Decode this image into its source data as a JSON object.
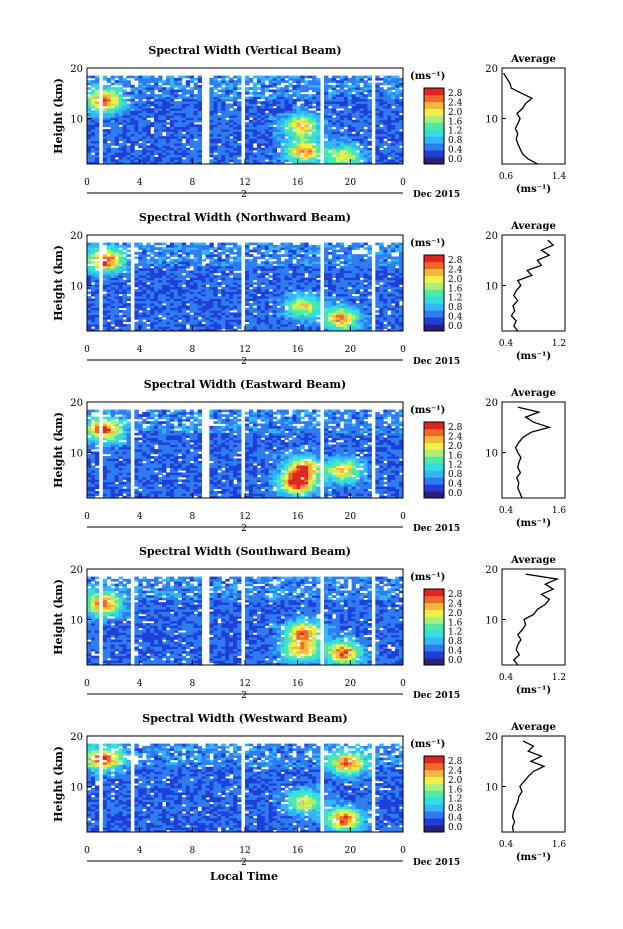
{
  "colorbar": {
    "unit": "(ms⁻¹)",
    "ticks": [
      "0.0",
      "0.4",
      "0.8",
      "1.2",
      "1.6",
      "2.0",
      "2.4",
      "2.8"
    ],
    "min": 0.0,
    "max": 3.0,
    "colors": [
      "#2a1f7a",
      "#1f3fd9",
      "#2f7cf0",
      "#33b5ff",
      "#33dede",
      "#4ee8a8",
      "#a9f07a",
      "#f2f047",
      "#f5b83a",
      "#ef6a2a",
      "#e0241f"
    ]
  },
  "bottom": {
    "x_ticks": [
      "0",
      "4",
      "8",
      "12",
      "16",
      "20",
      "0"
    ],
    "day_label": "2",
    "month_label": "Dec 2015",
    "xlabel": "Local Time"
  },
  "chart_data": [
    {
      "type": "heatmap",
      "title": "Spectral Width (Vertical Beam)",
      "ylabel": "Height (km)",
      "y_ticks": [
        "20",
        "10"
      ],
      "xlim": [
        0,
        24
      ],
      "ylim": [
        1,
        20
      ],
      "z_unit": "ms⁻¹",
      "gaps_hours": [
        [
          1.0,
          1.15
        ],
        [
          8.8,
          9.2
        ],
        [
          11.8,
          12.1
        ],
        [
          17.7,
          18.0
        ],
        [
          21.6,
          21.9
        ]
      ],
      "data_top_km": 18.5,
      "hotspots": [
        {
          "t": 1.3,
          "h": 13.5,
          "value": 2.6
        },
        {
          "t": 16.3,
          "h": 8.5,
          "value": 2.2
        },
        {
          "t": 16.5,
          "h": 3.5,
          "value": 2.4
        },
        {
          "t": 19.5,
          "h": 2.5,
          "value": 2.0
        }
      ],
      "profile": {
        "title": "Average",
        "xlabel": "(ms⁻¹)",
        "xlim": [
          0.6,
          1.4
        ],
        "x_ticks": [
          "0.6",
          "1.4"
        ],
        "y_ticks": [
          "20",
          "10"
        ],
        "heights_km": [
          1,
          2,
          3,
          4,
          5,
          6,
          7,
          8,
          9,
          10,
          11,
          12,
          13,
          14,
          15,
          16,
          17,
          18,
          19
        ],
        "values": [
          1.05,
          0.93,
          0.86,
          0.83,
          0.8,
          0.78,
          0.8,
          0.77,
          0.8,
          0.83,
          0.79,
          0.86,
          0.9,
          0.98,
          0.85,
          0.72,
          0.7,
          0.66,
          0.62
        ]
      }
    },
    {
      "type": "heatmap",
      "title": "Spectral Width (Northward Beam)",
      "ylabel": "Height (km)",
      "y_ticks": [
        "20",
        "10"
      ],
      "xlim": [
        0,
        24
      ],
      "ylim": [
        1,
        20
      ],
      "z_unit": "ms⁻¹",
      "gaps_hours": [
        [
          1.0,
          1.15
        ],
        [
          3.4,
          3.6
        ],
        [
          4.4,
          4.6
        ],
        [
          11.8,
          12.1
        ],
        [
          17.7,
          18.0
        ],
        [
          21.6,
          21.9
        ]
      ],
      "data_top_km": 18.5,
      "hotspots": [
        {
          "t": 1.4,
          "h": 15.0,
          "value": 2.6
        },
        {
          "t": 16.4,
          "h": 6.0,
          "value": 2.0
        },
        {
          "t": 19.3,
          "h": 3.5,
          "value": 2.4
        }
      ],
      "profile": {
        "title": "Average",
        "xlabel": "(ms⁻¹)",
        "xlim": [
          0.4,
          1.2
        ],
        "x_ticks": [
          "0.4",
          "1.2"
        ],
        "y_ticks": [
          "20",
          "10"
        ],
        "heights_km": [
          1,
          2,
          3,
          4,
          5,
          6,
          7,
          8,
          9,
          10,
          11,
          12,
          13,
          14,
          15,
          16,
          17,
          18,
          19
        ],
        "values": [
          0.6,
          0.55,
          0.58,
          0.52,
          0.56,
          0.54,
          0.6,
          0.55,
          0.58,
          0.64,
          0.6,
          0.78,
          0.72,
          0.9,
          0.85,
          1.0,
          0.9,
          1.05,
          0.98
        ]
      }
    },
    {
      "type": "heatmap",
      "title": "Spectral Width (Eastward Beam)",
      "ylabel": "Height (km)",
      "y_ticks": [
        "20",
        "10"
      ],
      "xlim": [
        0,
        24
      ],
      "ylim": [
        1,
        20
      ],
      "z_unit": "ms⁻¹",
      "gaps_hours": [
        [
          1.0,
          1.15
        ],
        [
          3.4,
          3.6
        ],
        [
          4.4,
          4.6
        ],
        [
          8.8,
          9.2
        ],
        [
          11.8,
          12.1
        ],
        [
          17.7,
          18.0
        ],
        [
          21.6,
          21.9
        ]
      ],
      "data_top_km": 18.5,
      "hotspots": [
        {
          "t": 1.3,
          "h": 14.5,
          "value": 2.6
        },
        {
          "t": 16.0,
          "h": 4.0,
          "value": 2.8
        },
        {
          "t": 16.4,
          "h": 7.0,
          "value": 2.4
        },
        {
          "t": 19.5,
          "h": 6.5,
          "value": 2.2
        }
      ],
      "profile": {
        "title": "Average",
        "xlabel": "(ms⁻¹)",
        "xlim": [
          0.4,
          1.6
        ],
        "x_ticks": [
          "0.4",
          "1.6"
        ],
        "y_ticks": [
          "20",
          "10"
        ],
        "heights_km": [
          1,
          2,
          3,
          4,
          5,
          6,
          7,
          8,
          9,
          10,
          11,
          12,
          13,
          14,
          15,
          16,
          17,
          18,
          19
        ],
        "values": [
          0.78,
          0.74,
          0.7,
          0.72,
          0.68,
          0.75,
          0.7,
          0.72,
          0.76,
          0.7,
          0.66,
          0.72,
          0.8,
          0.95,
          1.3,
          1.0,
          0.85,
          1.1,
          0.7
        ]
      }
    },
    {
      "type": "heatmap",
      "title": "Spectral Width (Southward Beam)",
      "ylabel": "Height (km)",
      "y_ticks": [
        "20",
        "10"
      ],
      "xlim": [
        0,
        24
      ],
      "ylim": [
        1,
        20
      ],
      "z_unit": "ms⁻¹",
      "gaps_hours": [
        [
          1.0,
          1.15
        ],
        [
          3.4,
          3.6
        ],
        [
          4.4,
          4.6
        ],
        [
          8.8,
          9.2
        ],
        [
          11.8,
          12.1
        ],
        [
          17.7,
          18.0
        ],
        [
          21.6,
          21.9
        ]
      ],
      "data_top_km": 18.5,
      "hotspots": [
        {
          "t": 1.2,
          "h": 13.0,
          "value": 2.6
        },
        {
          "t": 16.5,
          "h": 7.5,
          "value": 2.4
        },
        {
          "t": 19.5,
          "h": 3.5,
          "value": 2.6
        },
        {
          "t": 16.2,
          "h": 4.0,
          "value": 2.2
        }
      ],
      "profile": {
        "title": "Average",
        "xlabel": "(ms⁻¹)",
        "xlim": [
          0.4,
          1.2
        ],
        "x_ticks": [
          "0.4",
          "1.2"
        ],
        "y_ticks": [
          "20",
          "10"
        ],
        "heights_km": [
          1,
          2,
          3,
          4,
          5,
          6,
          7,
          8,
          9,
          10,
          11,
          12,
          13,
          14,
          15,
          16,
          17,
          18,
          19
        ],
        "values": [
          0.6,
          0.55,
          0.62,
          0.58,
          0.6,
          0.64,
          0.6,
          0.66,
          0.7,
          0.68,
          0.8,
          0.85,
          0.95,
          1.0,
          0.9,
          1.05,
          0.95,
          1.1,
          0.7
        ]
      }
    },
    {
      "type": "heatmap",
      "title": "Spectral Width (Westward Beam)",
      "ylabel": "Height (km)",
      "y_ticks": [
        "20",
        "10"
      ],
      "xlim": [
        0,
        24
      ],
      "ylim": [
        1,
        20
      ],
      "z_unit": "ms⁻¹",
      "gaps_hours": [
        [
          1.0,
          1.15
        ],
        [
          3.4,
          3.6
        ],
        [
          4.4,
          4.6
        ],
        [
          11.8,
          12.1
        ],
        [
          17.7,
          18.0
        ],
        [
          21.6,
          21.9
        ]
      ],
      "data_top_km": 18.5,
      "hotspots": [
        {
          "t": 1.3,
          "h": 15.5,
          "value": 2.6
        },
        {
          "t": 19.8,
          "h": 14.5,
          "value": 2.4
        },
        {
          "t": 19.5,
          "h": 3.5,
          "value": 2.6
        },
        {
          "t": 16.5,
          "h": 7.0,
          "value": 2.0
        }
      ],
      "profile": {
        "title": "Average",
        "xlabel": "(ms⁻¹)",
        "xlim": [
          0.4,
          1.6
        ],
        "x_ticks": [
          "0.4",
          "1.6"
        ],
        "y_ticks": [
          "20",
          "10"
        ],
        "heights_km": [
          1,
          2,
          3,
          4,
          5,
          6,
          7,
          8,
          9,
          10,
          11,
          12,
          13,
          14,
          15,
          16,
          17,
          18,
          19
        ],
        "values": [
          0.62,
          0.6,
          0.64,
          0.6,
          0.62,
          0.66,
          0.7,
          0.72,
          0.78,
          0.74,
          0.82,
          0.9,
          1.0,
          1.2,
          0.95,
          1.15,
          0.9,
          1.0,
          0.8
        ]
      }
    }
  ]
}
